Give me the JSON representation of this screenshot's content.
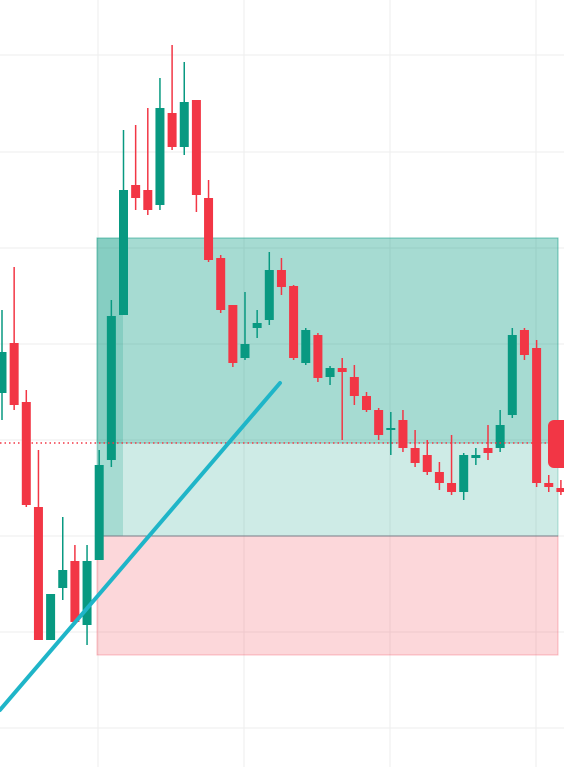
{
  "chart_data": {
    "type": "candlestick",
    "open": [
      374,
      424,
      365,
      260,
      127,
      179,
      206,
      142,
      207,
      307,
      452,
      582,
      577,
      562,
      654,
      620,
      667,
      569,
      509,
      462,
      409,
      439,
      447,
      497,
      481,
      404,
      432,
      390,
      399,
      390,
      371,
      357,
      337,
      347,
      319,
      312,
      295,
      284,
      275,
      309,
      319,
      319,
      352,
      437,
      419,
      284,
      279
    ],
    "high": [
      457,
      500,
      377,
      317,
      173,
      250,
      222,
      222,
      317,
      467,
      637,
      642,
      659,
      689,
      722,
      705,
      667,
      587,
      512,
      462,
      475,
      457,
      515,
      509,
      482,
      439,
      434,
      401,
      409,
      402,
      375,
      359,
      355,
      357,
      337,
      327,
      305,
      332,
      314,
      319,
      342,
      357,
      439,
      439,
      427,
      292,
      287
    ],
    "low": [
      347,
      357,
      260,
      127,
      127,
      167,
      142,
      122,
      207,
      300,
      452,
      557,
      552,
      557,
      617,
      612,
      555,
      505,
      454,
      400,
      407,
      429,
      442,
      472,
      407,
      402,
      385,
      382,
      327,
      362,
      355,
      327,
      312,
      315,
      300,
      292,
      277,
      272,
      267,
      302,
      307,
      315,
      349,
      407,
      280,
      275,
      272
    ],
    "close": [
      415,
      362,
      262,
      127,
      173,
      197,
      145,
      206,
      302,
      451,
      577,
      569,
      557,
      659,
      620,
      665,
      572,
      507,
      457,
      404,
      423,
      444,
      497,
      480,
      409,
      437,
      389,
      399,
      395,
      371,
      357,
      332,
      339,
      319,
      304,
      295,
      284,
      275,
      312,
      312,
      314,
      342,
      432,
      412,
      284,
      280,
      275
    ],
    "up_color": "#089981",
    "down_color": "#f23645",
    "ylim": [
      0,
      767
    ],
    "yticks": [
      39,
      135,
      231,
      327,
      423,
      519,
      615,
      712
    ],
    "grid": true,
    "position": {
      "entry": 324,
      "target": 529,
      "stop": 112
    }
  }
}
